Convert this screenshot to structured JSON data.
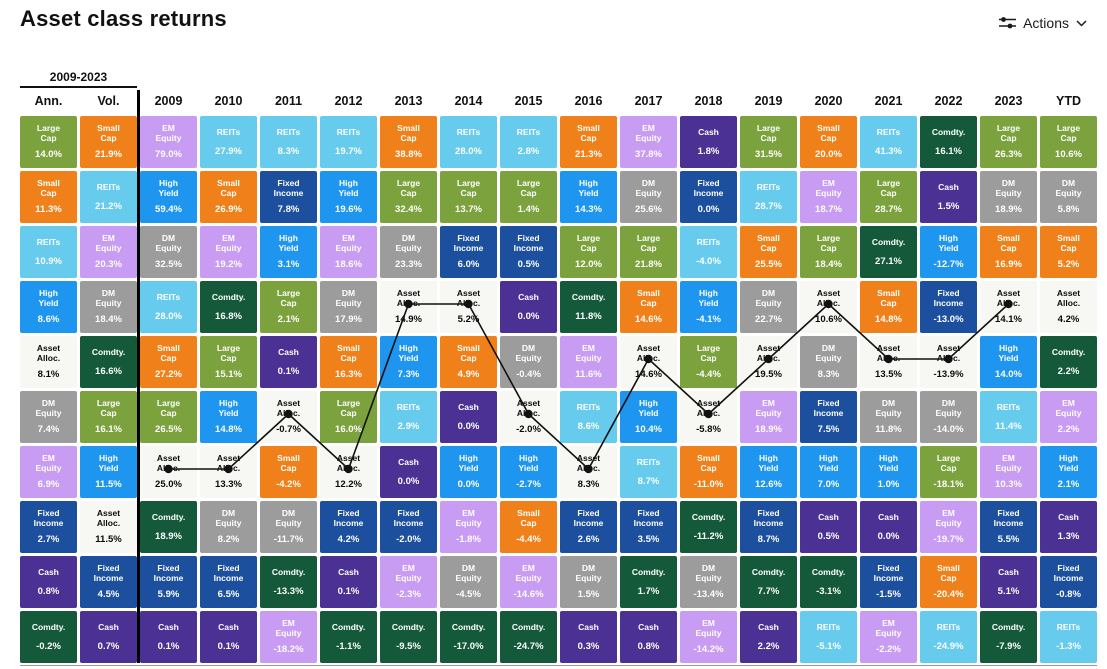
{
  "page": {
    "title": "Asset class returns"
  },
  "toolbar": {
    "actions_label": "Actions",
    "actions_icon": "sliders-icon",
    "chevron_icon": "chevron-down-icon"
  },
  "chart_data": {
    "type": "heatmap",
    "title": "Asset class returns",
    "period_label": "2009-2023",
    "value_suffix": "%",
    "legend_position": "none",
    "grid": "quilt of ranked asset-class returns, 10 rows per column",
    "line_overlay": {
      "asset": "Asset Alloc.",
      "from_column": "2009",
      "to_column": "2023"
    },
    "asset_styles": {
      "Large Cap": {
        "bg": "#7CA23D",
        "fg": "#FFFFFF"
      },
      "Small Cap": {
        "bg": "#F08019",
        "fg": "#FFFFFF"
      },
      "REITs": {
        "bg": "#66CBEC",
        "fg": "#FFFFFF"
      },
      "High Yield": {
        "bg": "#1E96F0",
        "fg": "#FFFFFF"
      },
      "EM Equity": {
        "bg": "#C89CF2",
        "fg": "#FFFFFF"
      },
      "DM Equity": {
        "bg": "#9C9C9C",
        "fg": "#FFFFFF"
      },
      "Fixed Income": {
        "bg": "#1C509F",
        "fg": "#FFFFFF"
      },
      "Cash": {
        "bg": "#4A3193",
        "fg": "#FFFFFF"
      },
      "Comdty.": {
        "bg": "#14593A",
        "fg": "#FFFFFF"
      },
      "Asset Alloc.": {
        "bg": "#F7F7F3",
        "fg": "#0A0A0A"
      }
    },
    "columns": [
      {
        "label": "Ann.",
        "ranked": [
          [
            "Large Cap",
            14.0
          ],
          [
            "Small Cap",
            11.3
          ],
          [
            "REITs",
            10.9
          ],
          [
            "High Yield",
            8.6
          ],
          [
            "Asset Alloc.",
            8.1
          ],
          [
            "DM Equity",
            7.4
          ],
          [
            "EM Equity",
            6.9
          ],
          [
            "Fixed Income",
            2.7
          ],
          [
            "Cash",
            0.8
          ],
          [
            "Comdty.",
            -0.2
          ]
        ]
      },
      {
        "label": "Vol.",
        "ranked": [
          [
            "Small Cap",
            21.9
          ],
          [
            "REITs",
            21.2
          ],
          [
            "EM Equity",
            20.3
          ],
          [
            "DM Equity",
            18.4
          ],
          [
            "Comdty.",
            16.6
          ],
          [
            "Large Cap",
            16.1
          ],
          [
            "High Yield",
            11.5
          ],
          [
            "Asset Alloc.",
            11.5
          ],
          [
            "Fixed Income",
            4.5
          ],
          [
            "Cash",
            0.7
          ]
        ]
      },
      {
        "label": "2009",
        "ranked": [
          [
            "EM Equity",
            79.0
          ],
          [
            "High Yield",
            59.4
          ],
          [
            "DM Equity",
            32.5
          ],
          [
            "REITs",
            28.0
          ],
          [
            "Small Cap",
            27.2
          ],
          [
            "Large Cap",
            26.5
          ],
          [
            "Asset Alloc.",
            25.0
          ],
          [
            "Comdty.",
            18.9
          ],
          [
            "Fixed Income",
            5.9
          ],
          [
            "Cash",
            0.1
          ]
        ]
      },
      {
        "label": "2010",
        "ranked": [
          [
            "REITs",
            27.9
          ],
          [
            "Small Cap",
            26.9
          ],
          [
            "EM Equity",
            19.2
          ],
          [
            "Comdty.",
            16.8
          ],
          [
            "Large Cap",
            15.1
          ],
          [
            "High Yield",
            14.8
          ],
          [
            "Asset Alloc.",
            13.3
          ],
          [
            "DM Equity",
            8.2
          ],
          [
            "Fixed Income",
            6.5
          ],
          [
            "Cash",
            0.1
          ]
        ]
      },
      {
        "label": "2011",
        "ranked": [
          [
            "REITs",
            8.3
          ],
          [
            "Fixed Income",
            7.8
          ],
          [
            "High Yield",
            3.1
          ],
          [
            "Large Cap",
            2.1
          ],
          [
            "Cash",
            0.1
          ],
          [
            "Asset Alloc.",
            -0.7
          ],
          [
            "Small Cap",
            -4.2
          ],
          [
            "DM Equity",
            -11.7
          ],
          [
            "Comdty.",
            -13.3
          ],
          [
            "EM Equity",
            -18.2
          ]
        ]
      },
      {
        "label": "2012",
        "ranked": [
          [
            "REITs",
            19.7
          ],
          [
            "High Yield",
            19.6
          ],
          [
            "EM Equity",
            18.6
          ],
          [
            "DM Equity",
            17.9
          ],
          [
            "Small Cap",
            16.3
          ],
          [
            "Large Cap",
            16.0
          ],
          [
            "Asset Alloc.",
            12.2
          ],
          [
            "Fixed Income",
            4.2
          ],
          [
            "Cash",
            0.1
          ],
          [
            "Comdty.",
            -1.1
          ]
        ]
      },
      {
        "label": "2013",
        "ranked": [
          [
            "Small Cap",
            38.8
          ],
          [
            "Large Cap",
            32.4
          ],
          [
            "DM Equity",
            23.3
          ],
          [
            "Asset Alloc.",
            14.9
          ],
          [
            "High Yield",
            7.3
          ],
          [
            "REITs",
            2.9
          ],
          [
            "Cash",
            0.0
          ],
          [
            "Fixed Income",
            -2.0
          ],
          [
            "EM Equity",
            -2.3
          ],
          [
            "Comdty.",
            -9.5
          ]
        ]
      },
      {
        "label": "2014",
        "ranked": [
          [
            "REITs",
            28.0
          ],
          [
            "Large Cap",
            13.7
          ],
          [
            "Fixed Income",
            6.0
          ],
          [
            "Asset Alloc.",
            5.2
          ],
          [
            "Small Cap",
            4.9
          ],
          [
            "Cash",
            0.0
          ],
          [
            "High Yield",
            0.0
          ],
          [
            "EM Equity",
            -1.8
          ],
          [
            "DM Equity",
            -4.5
          ],
          [
            "Comdty.",
            -17.0
          ]
        ]
      },
      {
        "label": "2015",
        "ranked": [
          [
            "REITs",
            2.8
          ],
          [
            "Large Cap",
            1.4
          ],
          [
            "Fixed Income",
            0.5
          ],
          [
            "Cash",
            0.0
          ],
          [
            "DM Equity",
            -0.4
          ],
          [
            "Asset Alloc.",
            -2.0
          ],
          [
            "High Yield",
            -2.7
          ],
          [
            "Small Cap",
            -4.4
          ],
          [
            "EM Equity",
            -14.6
          ],
          [
            "Comdty.",
            -24.7
          ]
        ]
      },
      {
        "label": "2016",
        "ranked": [
          [
            "Small Cap",
            21.3
          ],
          [
            "High Yield",
            14.3
          ],
          [
            "Large Cap",
            12.0
          ],
          [
            "Comdty.",
            11.8
          ],
          [
            "EM Equity",
            11.6
          ],
          [
            "REITs",
            8.6
          ],
          [
            "Asset Alloc.",
            8.3
          ],
          [
            "Fixed Income",
            2.6
          ],
          [
            "DM Equity",
            1.5
          ],
          [
            "Cash",
            0.3
          ]
        ]
      },
      {
        "label": "2017",
        "ranked": [
          [
            "EM Equity",
            37.8
          ],
          [
            "DM Equity",
            25.6
          ],
          [
            "Large Cap",
            21.8
          ],
          [
            "Small Cap",
            14.6
          ],
          [
            "Asset Alloc.",
            14.6
          ],
          [
            "High Yield",
            10.4
          ],
          [
            "REITs",
            8.7
          ],
          [
            "Fixed Income",
            3.5
          ],
          [
            "Comdty.",
            1.7
          ],
          [
            "Cash",
            0.8
          ]
        ]
      },
      {
        "label": "2018",
        "ranked": [
          [
            "Cash",
            1.8
          ],
          [
            "Fixed Income",
            0.0
          ],
          [
            "REITs",
            -4.0
          ],
          [
            "High Yield",
            -4.1
          ],
          [
            "Large Cap",
            -4.4
          ],
          [
            "Asset Alloc.",
            -5.8
          ],
          [
            "Small Cap",
            -11.0
          ],
          [
            "Comdty.",
            -11.2
          ],
          [
            "DM Equity",
            -13.4
          ],
          [
            "EM Equity",
            -14.2
          ]
        ]
      },
      {
        "label": "2019",
        "ranked": [
          [
            "Large Cap",
            31.5
          ],
          [
            "REITs",
            28.7
          ],
          [
            "Small Cap",
            25.5
          ],
          [
            "DM Equity",
            22.7
          ],
          [
            "Asset Alloc.",
            19.5
          ],
          [
            "EM Equity",
            18.9
          ],
          [
            "High Yield",
            12.6
          ],
          [
            "Fixed Income",
            8.7
          ],
          [
            "Comdty.",
            7.7
          ],
          [
            "Cash",
            2.2
          ]
        ]
      },
      {
        "label": "2020",
        "ranked": [
          [
            "Small Cap",
            20.0
          ],
          [
            "EM Equity",
            18.7
          ],
          [
            "Large Cap",
            18.4
          ],
          [
            "Asset Alloc.",
            10.6
          ],
          [
            "DM Equity",
            8.3
          ],
          [
            "Fixed Income",
            7.5
          ],
          [
            "High Yield",
            7.0
          ],
          [
            "Cash",
            0.5
          ],
          [
            "Comdty.",
            -3.1
          ],
          [
            "REITs",
            -5.1
          ]
        ]
      },
      {
        "label": "2021",
        "ranked": [
          [
            "REITs",
            41.3
          ],
          [
            "Large Cap",
            28.7
          ],
          [
            "Comdty.",
            27.1
          ],
          [
            "Small Cap",
            14.8
          ],
          [
            "Asset Alloc.",
            13.5
          ],
          [
            "DM Equity",
            11.8
          ],
          [
            "High Yield",
            1.0
          ],
          [
            "Cash",
            0.0
          ],
          [
            "Fixed Income",
            -1.5
          ],
          [
            "EM Equity",
            -2.2
          ]
        ]
      },
      {
        "label": "2022",
        "ranked": [
          [
            "Comdty.",
            16.1
          ],
          [
            "Cash",
            1.5
          ],
          [
            "High Yield",
            -12.7
          ],
          [
            "Fixed Income",
            -13.0
          ],
          [
            "Asset Alloc.",
            -13.9
          ],
          [
            "DM Equity",
            -14.0
          ],
          [
            "Large Cap",
            -18.1
          ],
          [
            "EM Equity",
            -19.7
          ],
          [
            "Small Cap",
            -20.4
          ],
          [
            "REITs",
            -24.9
          ]
        ]
      },
      {
        "label": "2023",
        "ranked": [
          [
            "Large Cap",
            26.3
          ],
          [
            "DM Equity",
            18.9
          ],
          [
            "Small Cap",
            16.9
          ],
          [
            "Asset Alloc.",
            14.1
          ],
          [
            "High Yield",
            14.0
          ],
          [
            "REITs",
            11.4
          ],
          [
            "EM Equity",
            10.3
          ],
          [
            "Fixed Income",
            5.5
          ],
          [
            "Cash",
            5.1
          ],
          [
            "Comdty.",
            -7.9
          ]
        ]
      },
      {
        "label": "YTD",
        "ranked": [
          [
            "Large Cap",
            10.6
          ],
          [
            "DM Equity",
            5.8
          ],
          [
            "Small Cap",
            5.2
          ],
          [
            "Asset Alloc.",
            4.2
          ],
          [
            "Comdty.",
            2.2
          ],
          [
            "EM Equity",
            2.2
          ],
          [
            "High Yield",
            2.1
          ],
          [
            "Cash",
            1.3
          ],
          [
            "Fixed Income",
            -0.8
          ],
          [
            "REITs",
            -1.3
          ]
        ]
      }
    ]
  }
}
